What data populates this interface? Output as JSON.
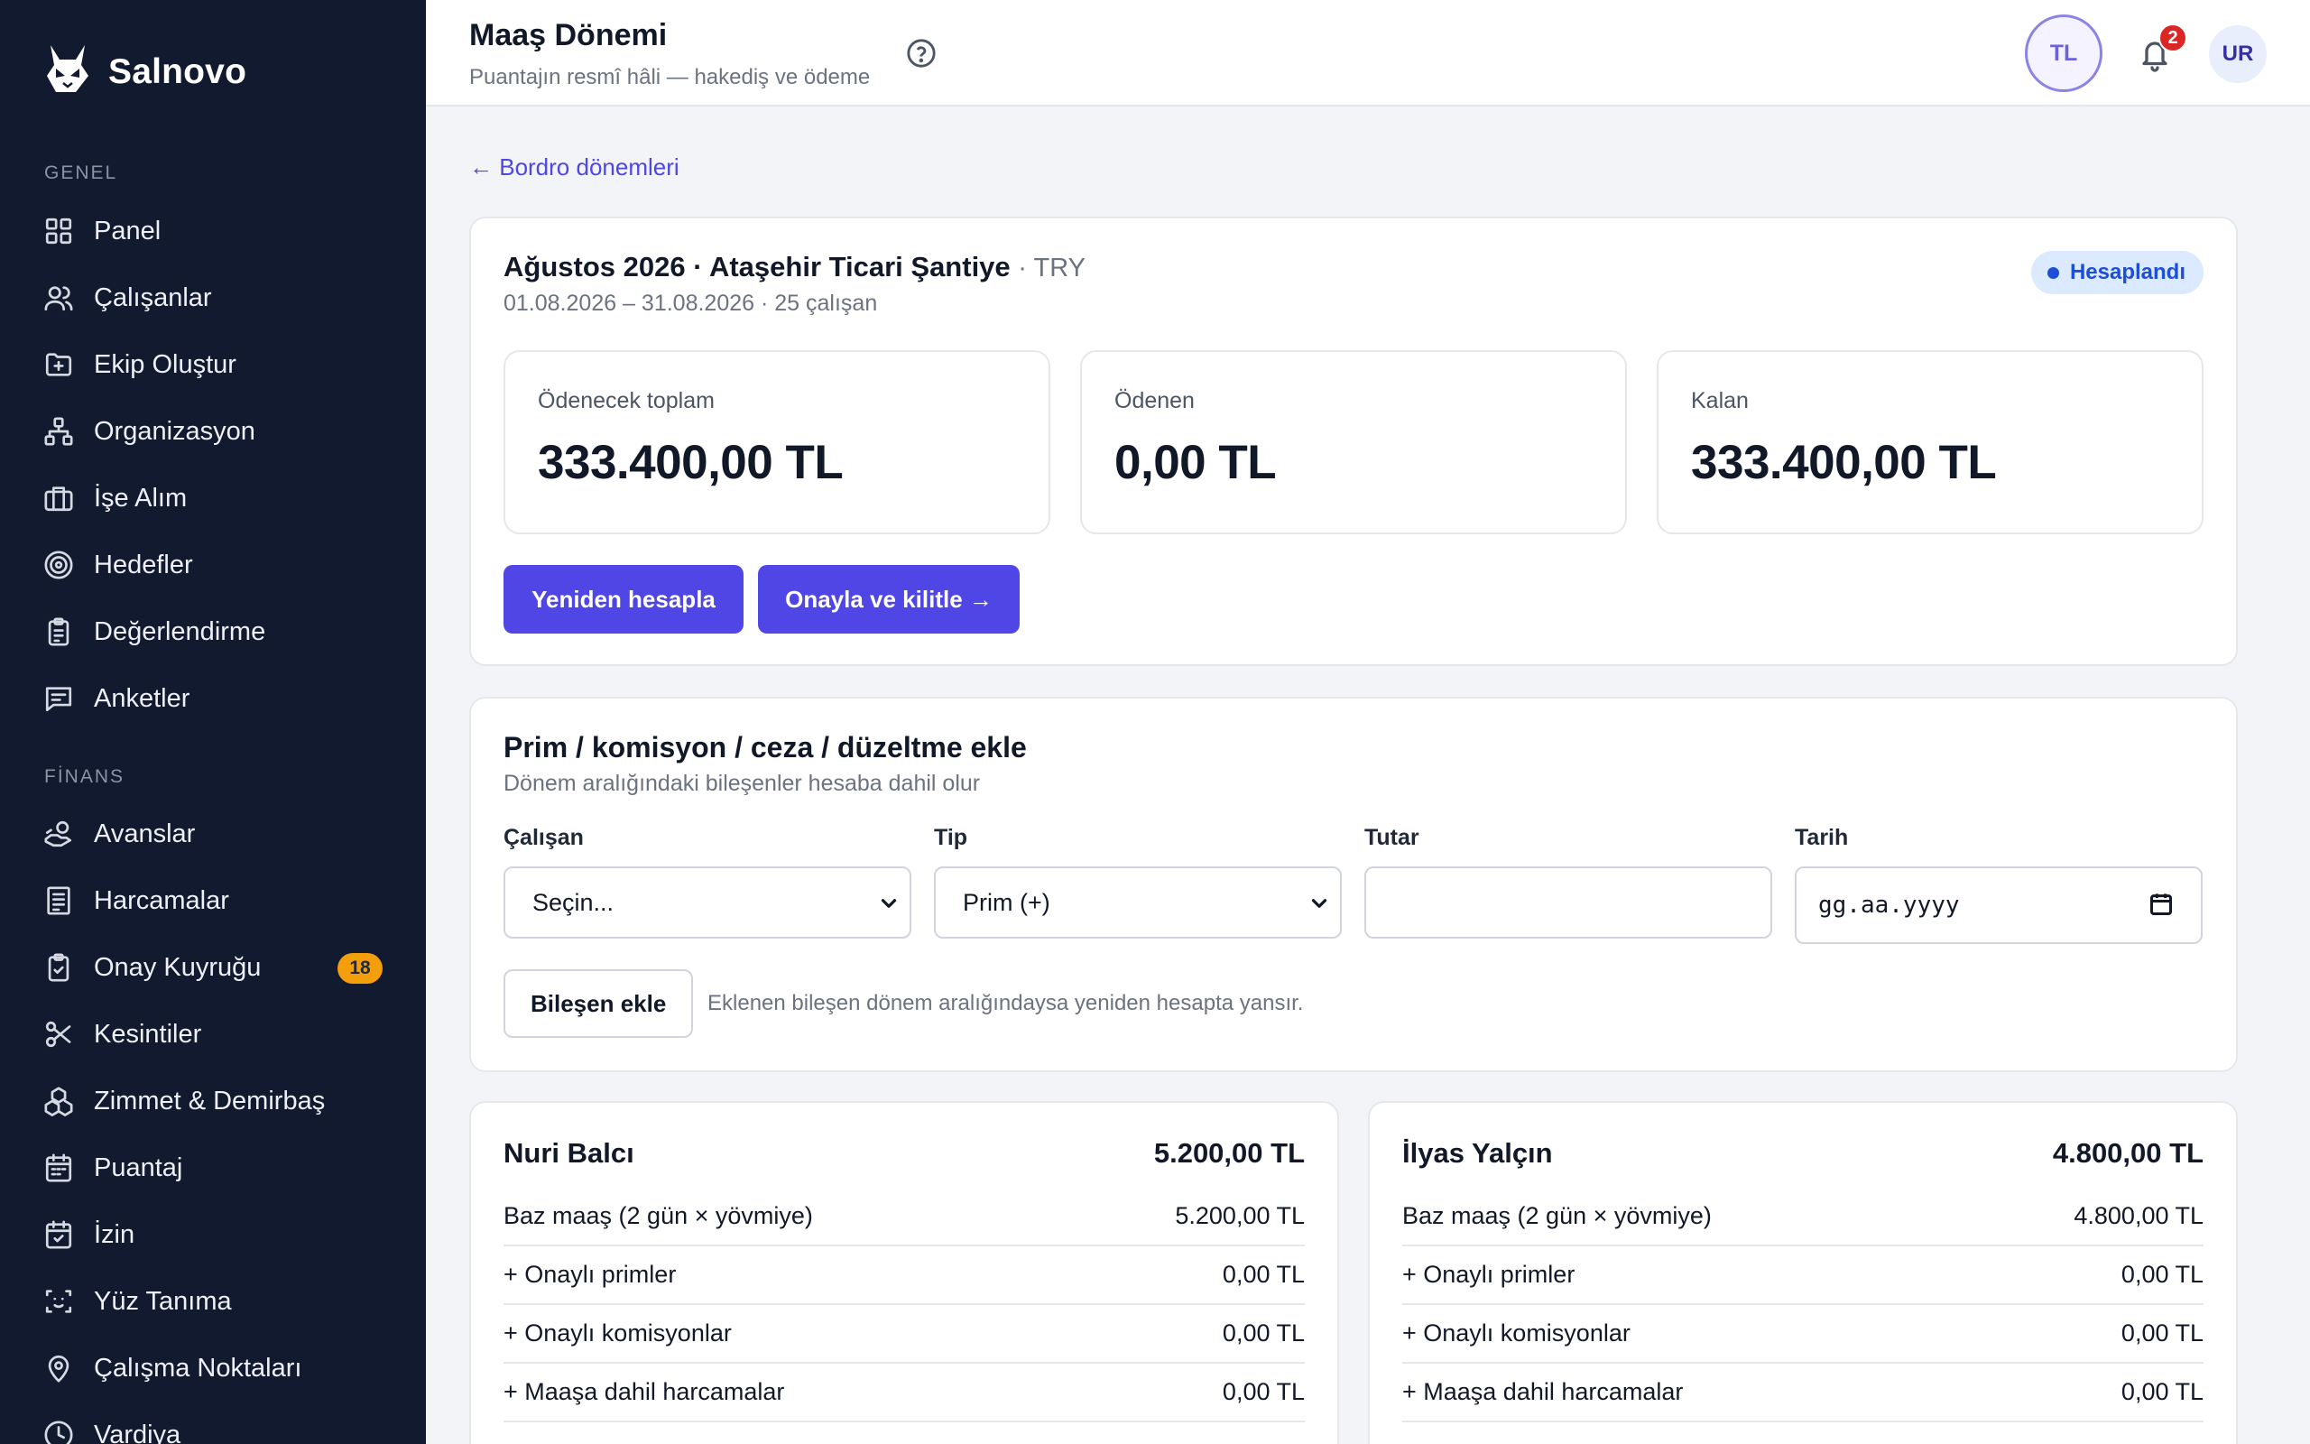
{
  "brand": {
    "name": "Salnovo"
  },
  "sidebar": {
    "sections": [
      {
        "label": "GENEL"
      },
      {
        "label": "FİNANS"
      }
    ],
    "items": [
      {
        "label": "Panel",
        "icon": "grid-icon"
      },
      {
        "label": "Çalışanlar",
        "icon": "users-icon"
      },
      {
        "label": "Ekip Oluştur",
        "icon": "folder-plus-icon"
      },
      {
        "label": "Organizasyon",
        "icon": "org-chart-icon"
      },
      {
        "label": "İşe Alım",
        "icon": "briefcase-icon"
      },
      {
        "label": "Hedefler",
        "icon": "target-icon"
      },
      {
        "label": "Değerlendirme",
        "icon": "clipboard-icon"
      },
      {
        "label": "Anketler",
        "icon": "message-icon"
      },
      {
        "label": "Avanslar",
        "icon": "hand-coins-icon"
      },
      {
        "label": "Harcamalar",
        "icon": "receipt-icon"
      },
      {
        "label": "Onay Kuyruğu",
        "icon": "clipboard-check-icon",
        "badge": "18"
      },
      {
        "label": "Kesintiler",
        "icon": "scissors-icon"
      },
      {
        "label": "Zimmet & Demirbaş",
        "icon": "boxes-icon"
      },
      {
        "label": "Puantaj",
        "icon": "calendar-icon"
      },
      {
        "label": "İzin",
        "icon": "calendar-check-icon"
      },
      {
        "label": "Yüz Tanıma",
        "icon": "face-scan-icon"
      },
      {
        "label": "Çalışma Noktaları",
        "icon": "map-pin-icon"
      },
      {
        "label": "Vardiya",
        "icon": "clock-icon"
      }
    ]
  },
  "header": {
    "title": "Maaş Dönemi",
    "subtitle": "Puantajın resmî hâli — hakediş ve ödeme",
    "currency_button": "TL",
    "notifications_count": "2",
    "user_initials": "UR"
  },
  "back_link": {
    "label": "← Bordro dönemleri"
  },
  "period": {
    "title": "Ağustos 2026 · Ataşehir Ticari Şantiye",
    "currency": "· TRY",
    "meta": "01.08.2026 – 31.08.2026 · 25 çalışan",
    "status": "Hesaplandı",
    "stats": [
      {
        "label": "Ödenecek toplam",
        "value": "333.400,00 TL"
      },
      {
        "label": "Ödenen",
        "value": "0,00 TL"
      },
      {
        "label": "Kalan",
        "value": "333.400,00 TL"
      }
    ],
    "recalculate_label": "Yeniden hesapla",
    "approve_label": "Onayla ve kilitle →"
  },
  "component_form": {
    "title": "Prim / komisyon / ceza / düzeltme ekle",
    "subtitle": "Dönem aralığındaki bileşenler hesaba dahil olur",
    "employee_label": "Çalışan",
    "employee_value": "Seçin...",
    "type_label": "Tip",
    "type_value": "Prim (+)",
    "amount_label": "Tutar",
    "amount_value": "",
    "date_label": "Tarih",
    "date_placeholder": "gg.aa.yyyy",
    "add_label": "Bileşen ekle",
    "hint": "Eklenen bileşen dönem aralığındaysa yeniden hesapta yansır."
  },
  "employees": [
    {
      "name": "Nuri Balcı",
      "total": "5.200,00 TL",
      "rows": [
        {
          "label": "Baz maaş (2 gün × yövmiye)",
          "value": "5.200,00 TL"
        },
        {
          "label": "+ Onaylı primler",
          "value": "0,00 TL"
        },
        {
          "label": "+ Onaylı komisyonlar",
          "value": "0,00 TL"
        },
        {
          "label": "+ Maaşa dahil harcamalar",
          "value": "0,00 TL"
        }
      ]
    },
    {
      "name": "İlyas Yalçın",
      "total": "4.800,00 TL",
      "rows": [
        {
          "label": "Baz maaş (2 gün × yövmiye)",
          "value": "4.800,00 TL"
        },
        {
          "label": "+ Onaylı primler",
          "value": "0,00 TL"
        },
        {
          "label": "+ Onaylı komisyonlar",
          "value": "0,00 TL"
        },
        {
          "label": "+ Maaşa dahil harcamalar",
          "value": "0,00 TL"
        }
      ]
    }
  ],
  "colors": {
    "sidebar_bg": "#111a2e",
    "accent": "#4f46e5",
    "badge_orange": "#f59e0b",
    "status_blue": "#1d4ed8"
  }
}
